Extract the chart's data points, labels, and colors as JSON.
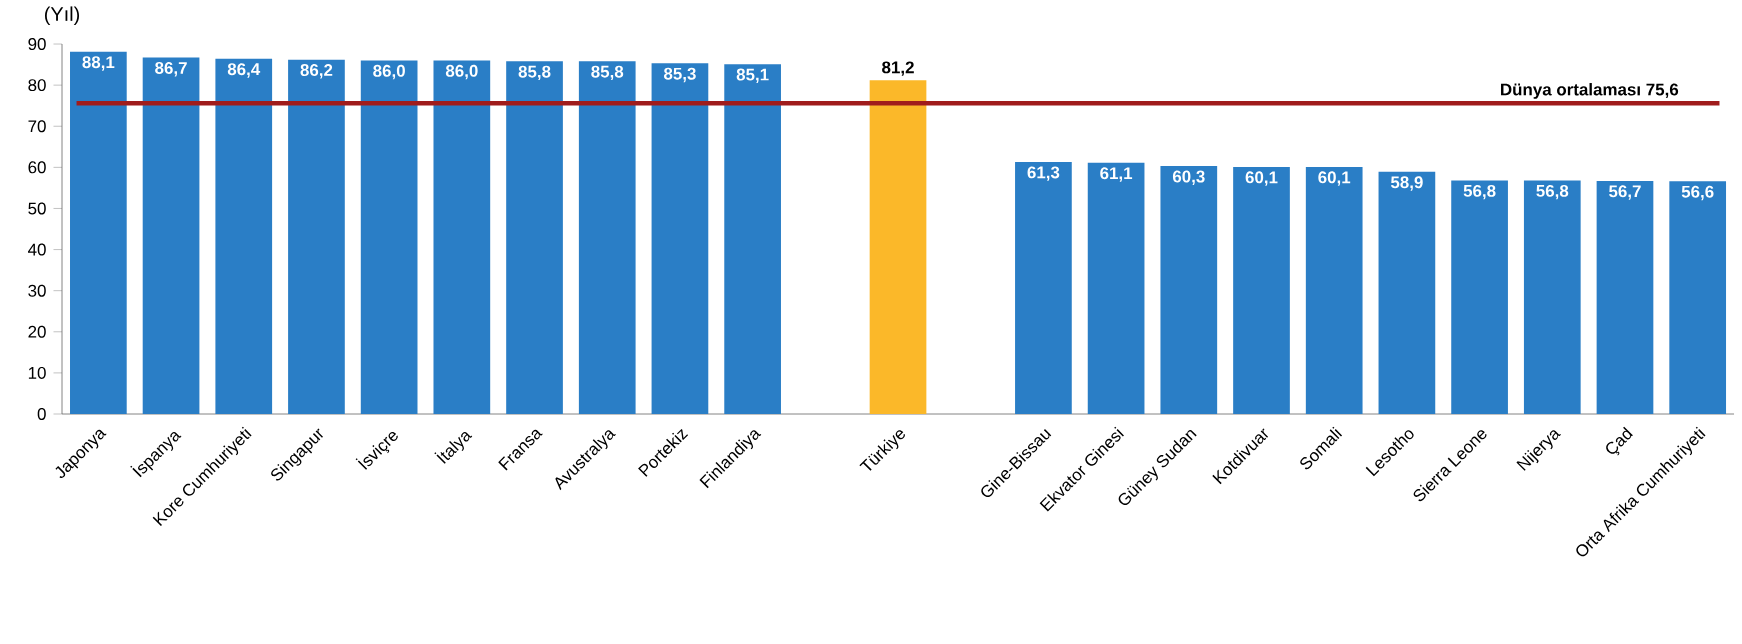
{
  "chart_data": {
    "type": "bar",
    "ylabel": "(Yıl)",
    "categories": [
      "Japonya",
      "İspanya",
      "Kore Cumhuriyeti",
      "Singapur",
      "İsviçre",
      "İtalya",
      "Fransa",
      "Avustralya",
      "Portekiz",
      "Finlandiya",
      null,
      "Türkiye",
      null,
      "Gine-Bissau",
      "Ekvator Ginesi",
      "Güney Sudan",
      "Kotdivuar",
      "Somali",
      "Lesotho",
      "Sierra Leone",
      "Nijerya",
      "Çad",
      "Orta Afrika Cumhuriyeti"
    ],
    "values": [
      88.1,
      86.7,
      86.4,
      86.2,
      86.0,
      86.0,
      85.8,
      85.8,
      85.3,
      85.1,
      null,
      81.2,
      null,
      61.3,
      61.1,
      60.3,
      60.1,
      60.1,
      58.9,
      56.8,
      56.8,
      56.7,
      56.6
    ],
    "value_labels": [
      "88,1",
      "86,7",
      "86,4",
      "86,2",
      "86,0",
      "86,0",
      "85,8",
      "85,8",
      "85,3",
      "85,1",
      null,
      "81,2",
      null,
      "61,3",
      "61,1",
      "60,3",
      "60,1",
      "60,1",
      "58,9",
      "56,8",
      "56,8",
      "56,7",
      "56,6"
    ],
    "color": "#2a7ec6",
    "colors": [
      "#2a7ec6",
      "#2a7ec6",
      "#2a7ec6",
      "#2a7ec6",
      "#2a7ec6",
      "#2a7ec6",
      "#2a7ec6",
      "#2a7ec6",
      "#2a7ec6",
      "#2a7ec6",
      null,
      "#fbb829",
      null,
      "#2a7ec6",
      "#2a7ec6",
      "#2a7ec6",
      "#2a7ec6",
      "#2a7ec6",
      "#2a7ec6",
      "#2a7ec6",
      "#2a7ec6",
      "#2a7ec6",
      "#2a7ec6"
    ],
    "ylim": [
      0,
      90
    ],
    "yticks": [
      0,
      10,
      20,
      30,
      40,
      50,
      60,
      70,
      80,
      90
    ],
    "ref_lines": [
      {
        "axis": "y",
        "value": 75.6,
        "label": "Dünya ortalaması    75,6",
        "color": "#a01c1c"
      }
    ],
    "grid": false
  }
}
